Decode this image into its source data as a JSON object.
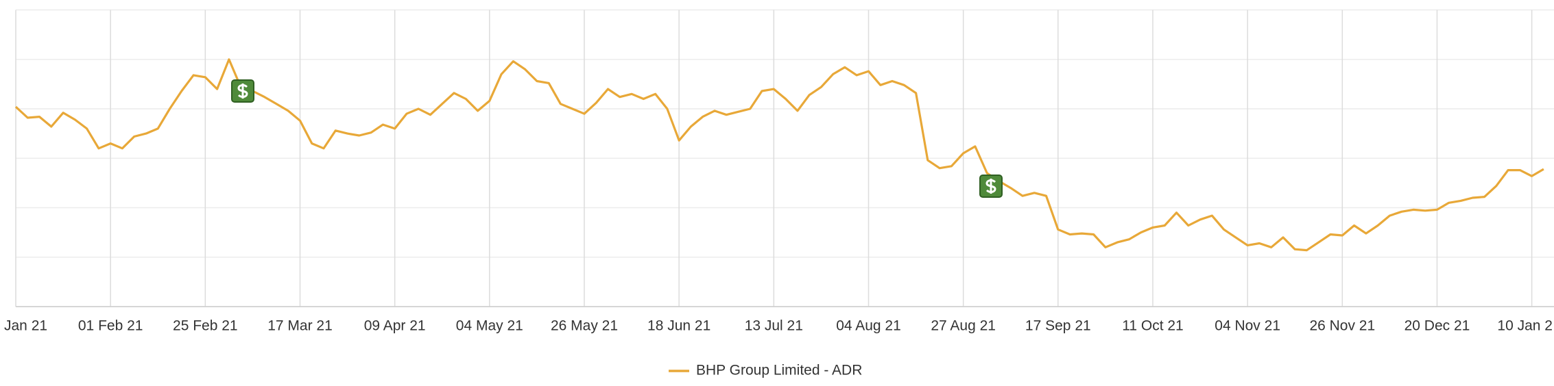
{
  "chart_data": {
    "type": "line",
    "series": [
      {
        "name": "BHP Group Limited - ADR",
        "color": "#e8a838",
        "values": [
          4.04,
          3.82,
          3.84,
          3.64,
          3.92,
          3.78,
          3.6,
          3.2,
          3.3,
          3.2,
          3.44,
          3.5,
          3.6,
          4.0,
          4.36,
          4.68,
          4.64,
          4.4,
          5.0,
          4.44,
          4.36,
          4.24,
          4.1,
          3.96,
          3.76,
          3.3,
          3.2,
          3.56,
          3.5,
          3.46,
          3.52,
          3.68,
          3.6,
          3.9,
          4.0,
          3.88,
          4.1,
          4.32,
          4.2,
          3.96,
          4.16,
          4.7,
          4.96,
          4.8,
          4.56,
          4.52,
          4.1,
          4.0,
          3.9,
          4.12,
          4.4,
          4.24,
          4.3,
          4.2,
          4.3,
          4.0,
          3.36,
          3.64,
          3.84,
          3.96,
          3.88,
          3.94,
          4.0,
          4.36,
          4.4,
          4.2,
          3.96,
          4.28,
          4.44,
          4.7,
          4.84,
          4.68,
          4.76,
          4.48,
          4.56,
          4.48,
          4.32,
          2.96,
          2.8,
          2.84,
          3.1,
          3.24,
          2.7,
          2.54,
          2.4,
          2.24,
          2.3,
          2.24,
          1.56,
          1.46,
          1.48,
          1.46,
          1.2,
          1.3,
          1.36,
          1.5,
          1.6,
          1.64,
          1.9,
          1.64,
          1.76,
          1.84,
          1.56,
          1.4,
          1.24,
          1.28,
          1.2,
          1.4,
          1.16,
          1.14,
          1.3,
          1.46,
          1.44,
          1.64,
          1.48,
          1.64,
          1.84,
          1.92,
          1.96,
          1.94,
          1.96,
          2.1,
          2.14,
          2.2,
          2.22,
          2.44,
          2.76,
          2.76,
          2.64,
          2.78
        ]
      }
    ],
    "xlim": [
      0,
      129.7
    ],
    "xticks": [
      {
        "value": 0,
        "label": "Jan 21"
      },
      {
        "value": 8,
        "label": "01 Feb 21"
      },
      {
        "value": 16,
        "label": "25 Feb 21"
      },
      {
        "value": 24,
        "label": "17 Mar 21"
      },
      {
        "value": 32,
        "label": "09 Apr 21"
      },
      {
        "value": 40,
        "label": "04 May 21"
      },
      {
        "value": 48,
        "label": "26 May 21"
      },
      {
        "value": 56,
        "label": "18 Jun 21"
      },
      {
        "value": 64,
        "label": "13 Jul 21"
      },
      {
        "value": 72,
        "label": "04 Aug 21"
      },
      {
        "value": 80,
        "label": "27 Aug 21"
      },
      {
        "value": 88,
        "label": "17 Sep 21"
      },
      {
        "value": 96,
        "label": "11 Oct 21"
      },
      {
        "value": 104,
        "label": "04 Nov 21"
      },
      {
        "value": 112,
        "label": "26 Nov 21"
      },
      {
        "value": 120,
        "label": "20 Dec 21"
      },
      {
        "value": 128,
        "label": "10 Jan 2"
      }
    ],
    "ylim": [
      0,
      6
    ],
    "ygrid": [
      0,
      1,
      2,
      3,
      4,
      5,
      6
    ],
    "grid": true
  }
}
